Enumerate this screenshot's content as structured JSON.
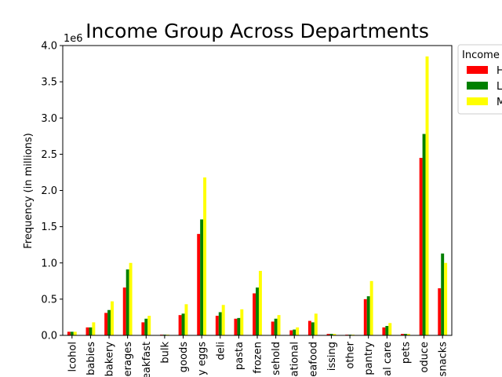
{
  "chart_data": {
    "type": "bar",
    "title": "Income Group Across Departments",
    "ylabel": "Frequency (in millions)",
    "xlabel": "",
    "scale_note": "1e6",
    "ylim": [
      0,
      4.0
    ],
    "yticks": [
      "0.0",
      "0.5",
      "1.0",
      "1.5",
      "2.0",
      "2.5",
      "3.0",
      "3.5",
      "4.0"
    ],
    "grid": false,
    "legend": {
      "title": "Income",
      "placement": "outside top-right",
      "entries": [
        "H",
        "L",
        "M"
      ]
    },
    "categories": [
      "lcohol",
      "babies",
      "bakery",
      "erages",
      "eakfast",
      "bulk",
      "goods",
      "y eggs",
      "deli",
      "pasta",
      "frozen",
      "sehold",
      "ational",
      "eafood",
      "issing",
      "other",
      "pantry",
      "al care",
      "pets",
      "oduce",
      "snacks"
    ],
    "series": [
      {
        "name": "H",
        "color": "#ff0000",
        "values": [
          0.05,
          0.11,
          0.31,
          0.66,
          0.18,
          0.01,
          0.28,
          1.4,
          0.27,
          0.23,
          0.58,
          0.19,
          0.07,
          0.2,
          0.02,
          0.01,
          0.5,
          0.11,
          0.02,
          2.45,
          0.65
        ]
      },
      {
        "name": "L",
        "color": "#008000",
        "values": [
          0.05,
          0.11,
          0.35,
          0.91,
          0.23,
          0.01,
          0.3,
          1.6,
          0.32,
          0.24,
          0.66,
          0.23,
          0.08,
          0.18,
          0.02,
          0.01,
          0.54,
          0.13,
          0.02,
          2.78,
          1.13
        ]
      },
      {
        "name": "M",
        "color": "#ffff00",
        "values": [
          0.05,
          0.18,
          0.47,
          1.0,
          0.27,
          0.01,
          0.43,
          2.18,
          0.42,
          0.36,
          0.89,
          0.28,
          0.11,
          0.3,
          0.02,
          0.01,
          0.75,
          0.17,
          0.02,
          3.85,
          1.0
        ]
      }
    ]
  }
}
